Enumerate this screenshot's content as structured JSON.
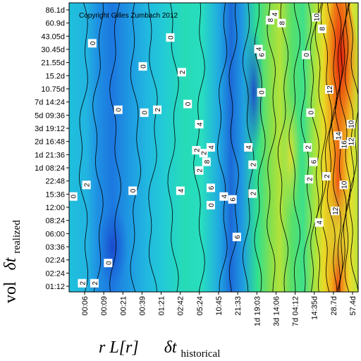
{
  "chart_data": {
    "type": "heatmap",
    "title": "",
    "copyright": "Copyright Gilles Zumbach 2012",
    "xlabel": {
      "prefix": "r L[r]",
      "delta": "δt",
      "subscript": "historical"
    },
    "ylabel": {
      "prefix": "vol",
      "delta": "δt",
      "subscript": "realized"
    },
    "x_ticks": [
      "00:06",
      "00:09",
      "00:21",
      "00:39",
      "01:21",
      "02:42",
      "05:24",
      "10:45",
      "21:33",
      "1d 19:03",
      "3d 14:06",
      "7d 04:12",
      "14:35d",
      "28.7d",
      "57.4d"
    ],
    "y_ticks": [
      "86.1d",
      "60.9d",
      "43.05d",
      "30.45d",
      "21.55d",
      "15.2d",
      "10.75d",
      "7d 14:24",
      "5d 09:36",
      "3d 19:12",
      "2d 16:48",
      "1d 21:36",
      "1d 08:24",
      "22:48",
      "15:36",
      "12:00",
      "08:24",
      "06:00",
      "03:36",
      "02:24",
      "02:24",
      "01:12"
    ],
    "colorscale": [
      "#1f4fd6",
      "#1d8fe0",
      "#1fc4d8",
      "#2ee0a0",
      "#7be05a",
      "#c8e83a",
      "#f4d020",
      "#f08a18",
      "#e02810"
    ],
    "contour_labels": [
      {
        "text": "2",
        "x": 0.09,
        "y": 0.03
      },
      {
        "text": "2",
        "x": 0.175,
        "y": 0.03
      },
      {
        "text": "0",
        "x": 0.028,
        "y": 0.33
      },
      {
        "text": "2",
        "x": 0.12,
        "y": 0.37
      },
      {
        "text": "0",
        "x": 0.16,
        "y": 0.86
      },
      {
        "text": "0",
        "x": 0.27,
        "y": 0.1
      },
      {
        "text": "0",
        "x": 0.34,
        "y": 0.63
      },
      {
        "text": "0",
        "x": 0.44,
        "y": 0.35
      },
      {
        "text": "0",
        "x": 0.51,
        "y": 0.78
      },
      {
        "text": "0",
        "x": 0.52,
        "y": 0.62
      },
      {
        "text": "2",
        "x": 0.61,
        "y": 0.63
      },
      {
        "text": "0",
        "x": 0.7,
        "y": 0.88
      },
      {
        "text": "2",
        "x": 0.78,
        "y": 0.76
      },
      {
        "text": "0",
        "x": 0.82,
        "y": 0.65
      },
      {
        "text": "2",
        "x": 0.9,
        "y": 0.42
      },
      {
        "text": "4",
        "x": 0.9,
        "y": 0.58
      },
      {
        "text": "8",
        "x": 0.95,
        "y": 0.45
      },
      {
        "text": "2",
        "x": 0.88,
        "y": 0.49
      },
      {
        "text": "4",
        "x": 0.98,
        "y": 0.5
      },
      {
        "text": "2",
        "x": 0.93,
        "y": 0.48
      },
      {
        "text": "4",
        "x": 0.77,
        "y": 0.35
      },
      {
        "text": "6",
        "x": 0.98,
        "y": 0.36
      },
      {
        "text": "0",
        "x": 0.98,
        "y": 0.3
      },
      {
        "text": "4",
        "x": 1.07,
        "y": 0.33
      },
      {
        "text": "6",
        "x": 1.13,
        "y": 0.32
      },
      {
        "text": "6",
        "x": 1.16,
        "y": 0.19
      },
      {
        "text": "2",
        "x": 1.27,
        "y": 0.34
      },
      {
        "text": "4",
        "x": 1.24,
        "y": 0.5
      },
      {
        "text": "0",
        "x": 1.33,
        "y": 0.69
      },
      {
        "text": "6",
        "x": 1.33,
        "y": 0.82
      },
      {
        "text": "8",
        "x": 1.39,
        "y": 0.94
      },
      {
        "text": "4",
        "x": 1.42,
        "y": 0.96
      },
      {
        "text": "8",
        "x": 1.47,
        "y": 0.93
      },
      {
        "text": "10",
        "x": 1.71,
        "y": 0.95
      },
      {
        "text": "4",
        "x": 1.31,
        "y": 0.84
      },
      {
        "text": "2",
        "x": 1.27,
        "y": 0.44
      },
      {
        "text": "8",
        "x": 1.75,
        "y": 0.91
      },
      {
        "text": "12",
        "x": 1.8,
        "y": 0.7
      },
      {
        "text": "14",
        "x": 1.86,
        "y": 0.54
      },
      {
        "text": "10",
        "x": 1.95,
        "y": 0.58
      },
      {
        "text": "12",
        "x": 1.95,
        "y": 0.52
      },
      {
        "text": "10",
        "x": 1.9,
        "y": 0.37
      },
      {
        "text": "16",
        "x": 1.9,
        "y": 0.51
      },
      {
        "text": "12",
        "x": 1.84,
        "y": 0.28
      },
      {
        "text": "4",
        "x": 1.73,
        "y": 0.24
      },
      {
        "text": "6",
        "x": 1.69,
        "y": 0.45
      },
      {
        "text": "2",
        "x": 1.65,
        "y": 0.5
      },
      {
        "text": "2",
        "x": 1.66,
        "y": 0.39
      },
      {
        "text": "2",
        "x": 1.78,
        "y": 0.4
      },
      {
        "text": "0",
        "x": 1.67,
        "y": 0.62
      },
      {
        "text": "0",
        "x": 1.64,
        "y": 0.82
      }
    ]
  }
}
